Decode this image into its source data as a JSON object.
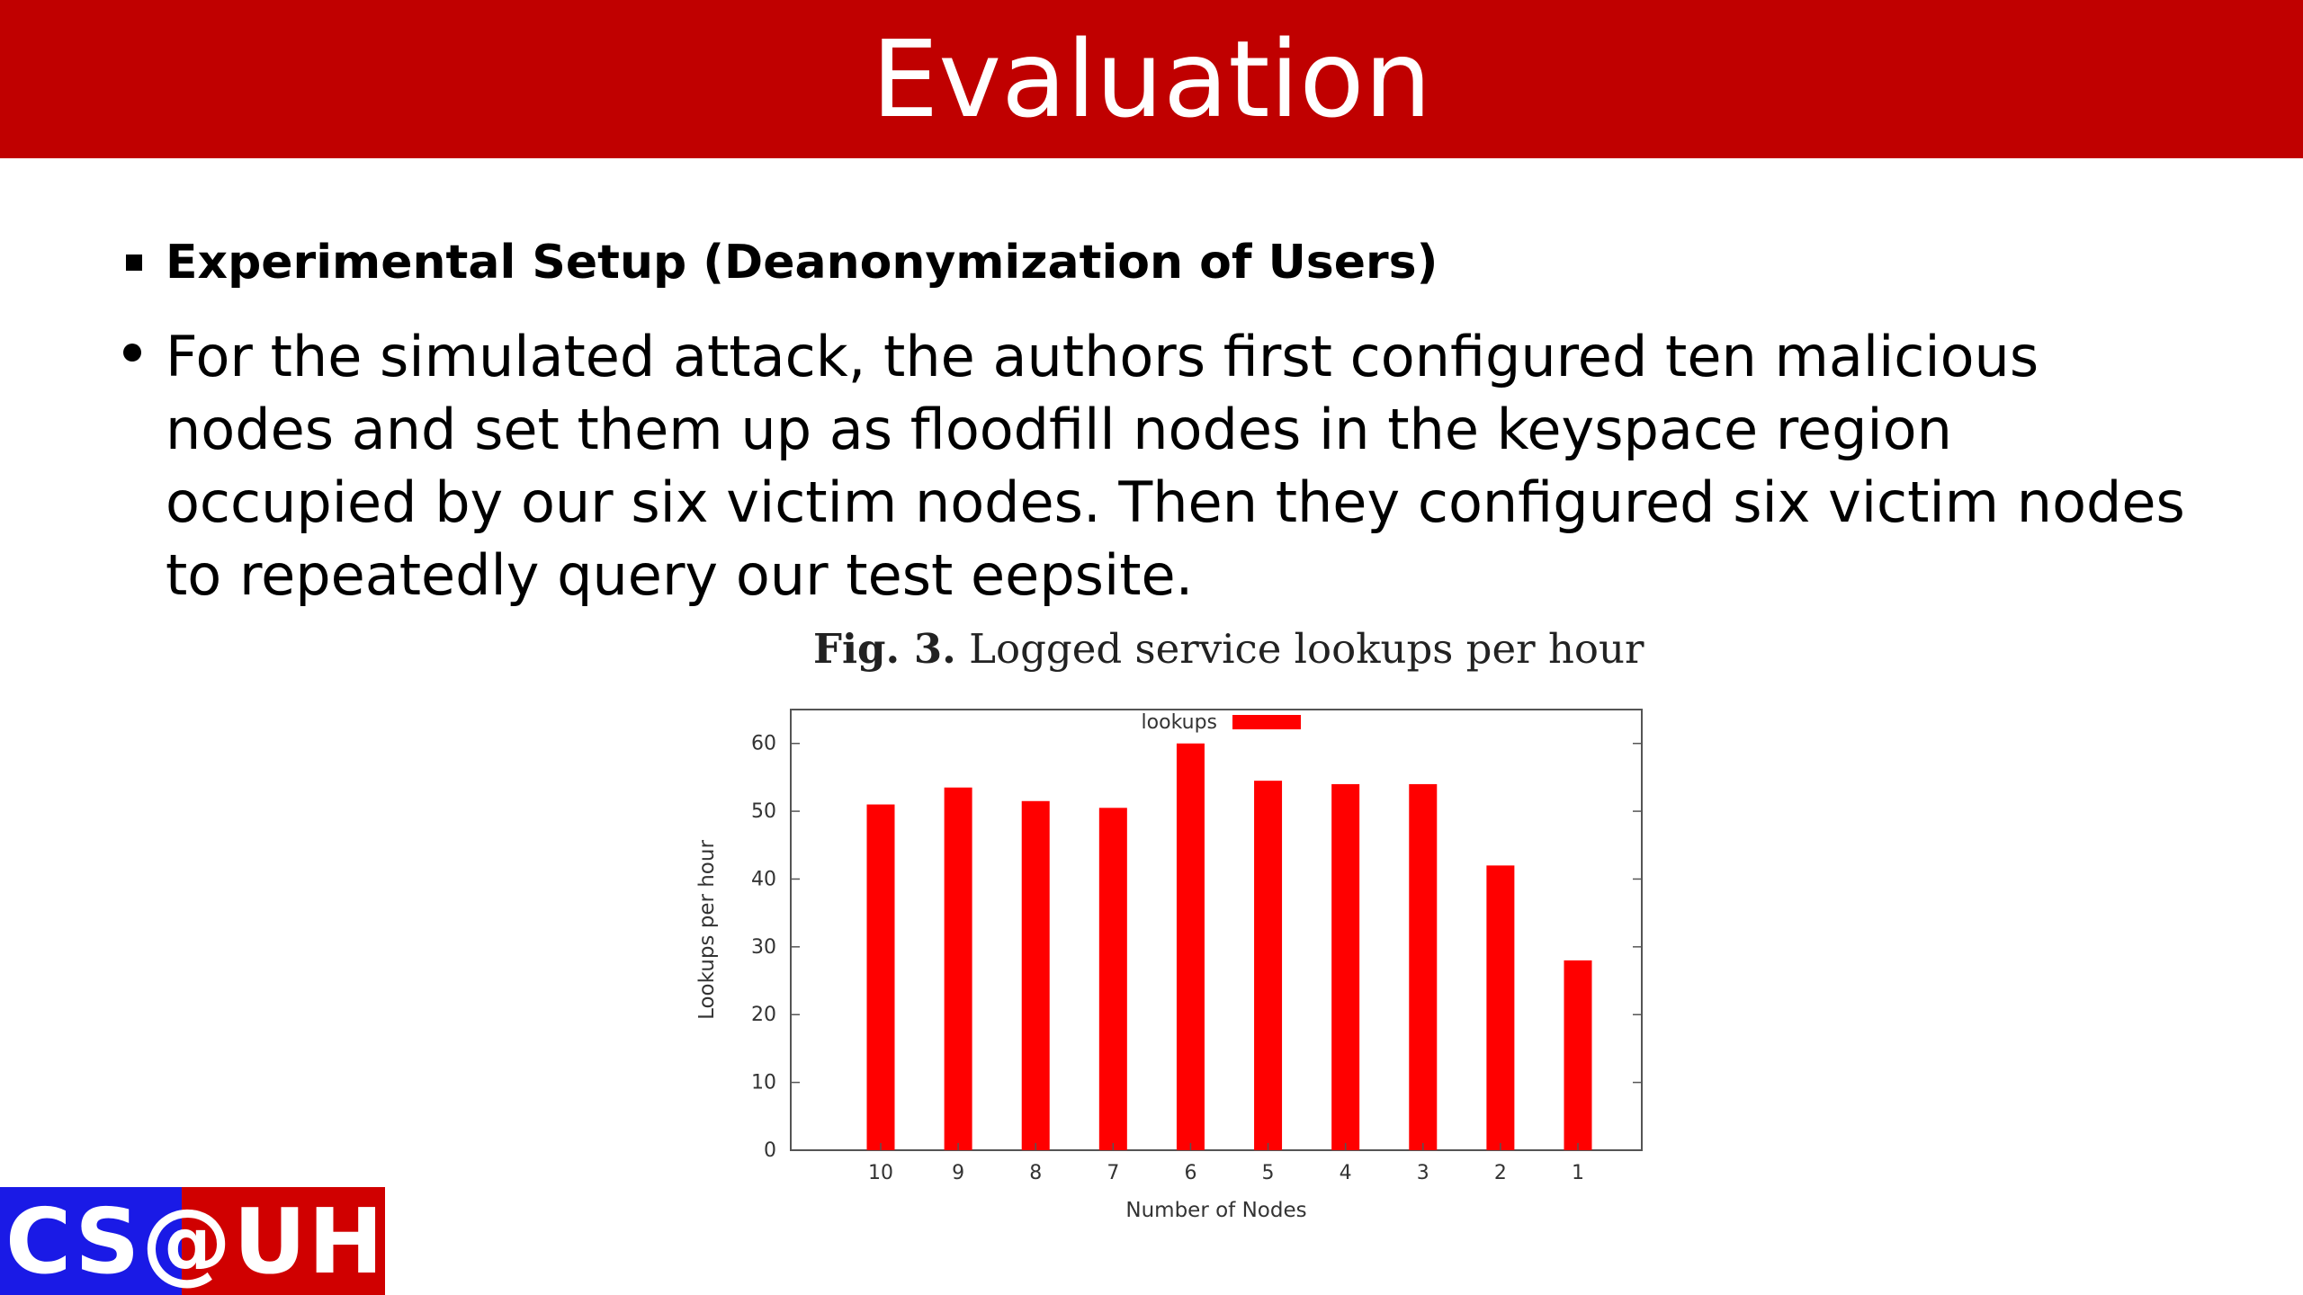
{
  "slide": {
    "title": "Evaluation",
    "heading": "Experimental Setup (Deanonymization of Users)",
    "paragraph": "For the simulated attack, the authors first configured ten malicious nodes and set them up as floodfill nodes in the keyspace region occupied by our six victim nodes. Then they configured six victim nodes to repeatedly query our test eepsite.",
    "figure_label": "Fig. 3.",
    "figure_caption": "Logged service lookups per hour",
    "logo_text": "CS@UH"
  },
  "colors": {
    "title_bar": "#c00000",
    "bar": "#ff0000",
    "logo_blue": "#1a1ae6",
    "logo_red": "#d00000"
  },
  "chart_data": {
    "type": "bar",
    "categories": [
      "10",
      "9",
      "8",
      "7",
      "6",
      "5",
      "4",
      "3",
      "2",
      "1"
    ],
    "series": [
      {
        "name": "lookups",
        "values": [
          51,
          53.5,
          51.5,
          50.5,
          60,
          54.5,
          54,
          54,
          42,
          28
        ]
      }
    ],
    "xlabel": "Number of Nodes",
    "ylabel": "Lookups per hour",
    "ylim": [
      0,
      65
    ],
    "yticks": [
      0,
      10,
      20,
      30,
      40,
      50,
      60
    ],
    "legend": "top-center",
    "grid": false
  }
}
